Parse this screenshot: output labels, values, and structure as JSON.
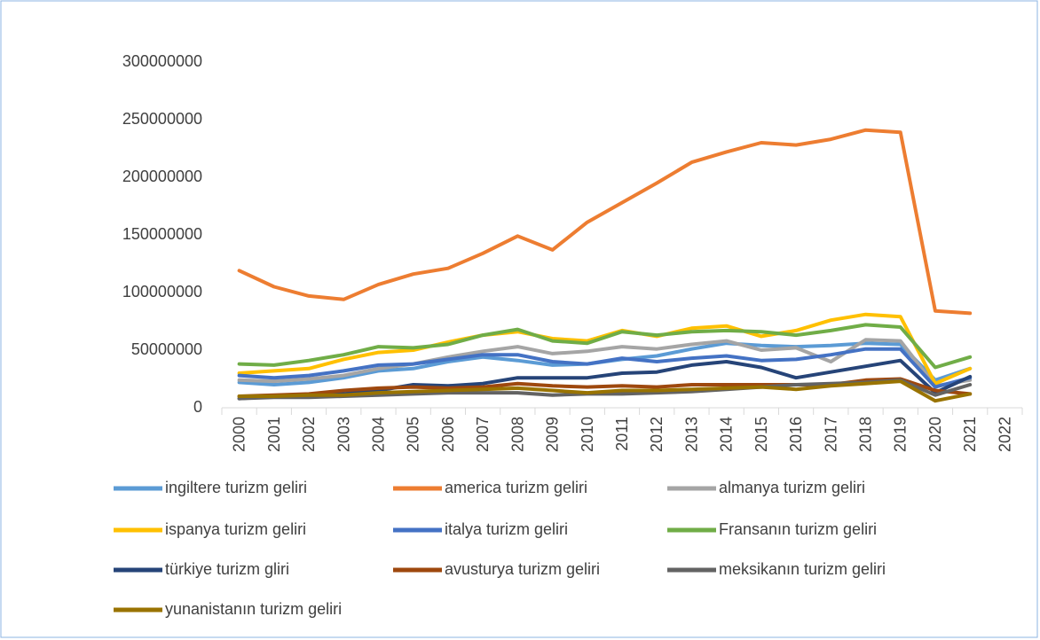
{
  "chart_data": {
    "type": "line",
    "categories": [
      "2000",
      "2001",
      "2002",
      "2003",
      "2004",
      "2005",
      "2006",
      "2007",
      "2008",
      "2009",
      "2010",
      "2011",
      "2012",
      "2013",
      "2014",
      "2015",
      "2016",
      "2017",
      "2018",
      "2019",
      "2020",
      "2021",
      "2022"
    ],
    "ylim": [
      0,
      300000000
    ],
    "yticks": [
      0,
      50000000,
      100000000,
      150000000,
      200000000,
      250000000,
      300000000
    ],
    "grid": false,
    "legend": "bottom",
    "series": [
      {
        "name": "ingiltere turizm geliri",
        "color": "#5b9bd5",
        "values": [
          22000000,
          20000000,
          22000000,
          26000000,
          32000000,
          34000000,
          40000000,
          44000000,
          41000000,
          37000000,
          38000000,
          42000000,
          45000000,
          51000000,
          56000000,
          54000000,
          53000000,
          54000000,
          56000000,
          55000000,
          24000000,
          34000000,
          null
        ]
      },
      {
        "name": "america turizm geliri",
        "color": "#ed7d31",
        "values": [
          119000000,
          105000000,
          97000000,
          94000000,
          107000000,
          116000000,
          121000000,
          134000000,
          149000000,
          137000000,
          161000000,
          178000000,
          195000000,
          213000000,
          222000000,
          230000000,
          228000000,
          233000000,
          241000000,
          239000000,
          84000000,
          82000000,
          null
        ]
      },
      {
        "name": "almanya turizm geliri",
        "color": "#a5a5a5",
        "values": [
          24000000,
          23000000,
          25000000,
          28000000,
          34000000,
          38000000,
          44000000,
          49000000,
          53000000,
          47000000,
          49000000,
          53000000,
          51000000,
          55000000,
          58000000,
          50000000,
          52000000,
          40000000,
          59000000,
          58000000,
          19000000,
          24000000,
          null
        ]
      },
      {
        "name": "ispanya turizm geliri",
        "color": "#ffc000",
        "values": [
          30000000,
          32000000,
          34000000,
          42000000,
          48000000,
          50000000,
          57000000,
          63000000,
          66000000,
          60000000,
          58000000,
          67000000,
          62000000,
          69000000,
          71000000,
          62000000,
          67000000,
          76000000,
          81000000,
          79000000,
          21000000,
          34000000,
          null
        ]
      },
      {
        "name": "italya turizm geliri",
        "color": "#4472c4",
        "values": [
          28000000,
          26000000,
          28000000,
          32000000,
          37000000,
          38000000,
          42000000,
          46000000,
          46000000,
          40000000,
          38000000,
          43000000,
          40000000,
          43000000,
          45000000,
          41000000,
          42000000,
          46000000,
          51000000,
          51000000,
          18000000,
          26000000,
          null
        ]
      },
      {
        "name": "Fransanın turizm geliri",
        "color": "#70ad47",
        "values": [
          38000000,
          37000000,
          41000000,
          46000000,
          53000000,
          52000000,
          55000000,
          63000000,
          68000000,
          58000000,
          56000000,
          66000000,
          63000000,
          66000000,
          67000000,
          66000000,
          63000000,
          67000000,
          72000000,
          70000000,
          35000000,
          44000000,
          null
        ]
      },
      {
        "name": "türkiye turizm gliri",
        "color": "#264478",
        "values": [
          8000000,
          10000000,
          11000000,
          12000000,
          15000000,
          20000000,
          19000000,
          21000000,
          26000000,
          26000000,
          26000000,
          30000000,
          31000000,
          37000000,
          40000000,
          35000000,
          26000000,
          31000000,
          36000000,
          41000000,
          13000000,
          27000000,
          null
        ]
      },
      {
        "name": "avusturya turizm geliri",
        "color": "#9e480e",
        "values": [
          10000000,
          11000000,
          12000000,
          15000000,
          17000000,
          18000000,
          17000000,
          18000000,
          21000000,
          19000000,
          18000000,
          19000000,
          18000000,
          20000000,
          20000000,
          20000000,
          20000000,
          20000000,
          24000000,
          25000000,
          15000000,
          12000000,
          null
        ]
      },
      {
        "name": "meksikanın turizm geliri",
        "color": "#636363",
        "values": [
          8000000,
          9000000,
          9000000,
          10000000,
          11000000,
          12000000,
          13000000,
          13000000,
          13000000,
          11000000,
          12000000,
          12000000,
          13000000,
          14000000,
          16000000,
          18000000,
          20000000,
          21000000,
          22000000,
          24000000,
          11000000,
          20000000,
          null
        ]
      },
      {
        "name": "yunanistanın turizm geliri",
        "color": "#997300",
        "values": [
          10000000,
          10000000,
          11000000,
          11000000,
          13000000,
          14000000,
          15000000,
          16000000,
          17000000,
          15000000,
          13000000,
          15000000,
          15000000,
          16000000,
          17000000,
          18000000,
          16000000,
          19000000,
          21000000,
          23000000,
          6000000,
          12000000,
          null
        ]
      }
    ]
  }
}
